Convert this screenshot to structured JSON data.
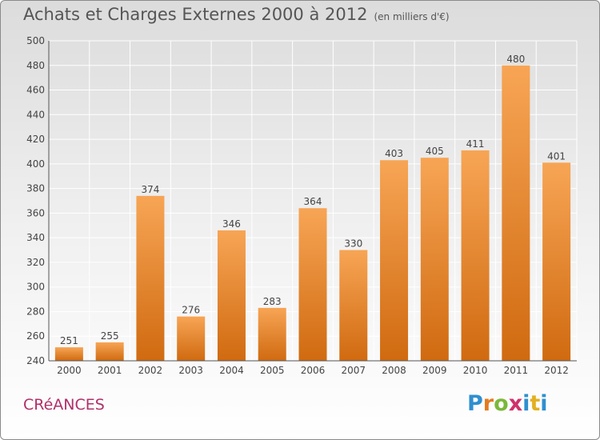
{
  "header": {
    "title": "Achats et Charges Externes 2000 à 2012",
    "subtitle": "(en milliers d'€)"
  },
  "footer": {
    "place": "CRéANCES",
    "brand": "Proxiti"
  },
  "colors": {
    "bar_light": "#f7a555",
    "bar_dark": "#d06a10"
  },
  "chart_data": {
    "type": "bar",
    "categories": [
      "2000",
      "2001",
      "2002",
      "2003",
      "2004",
      "2005",
      "2006",
      "2007",
      "2008",
      "2009",
      "2010",
      "2011",
      "2012"
    ],
    "values": [
      251,
      255,
      374,
      276,
      346,
      283,
      364,
      330,
      403,
      405,
      411,
      480,
      401
    ],
    "title": "Achats et Charges Externes 2000 à 2012",
    "subtitle": "(en milliers d'€)",
    "xlabel": "",
    "ylabel": "",
    "ylim": [
      240,
      500
    ],
    "yticks": [
      240,
      260,
      280,
      300,
      320,
      340,
      360,
      380,
      400,
      420,
      440,
      460,
      480,
      500
    ],
    "grid": true,
    "legend": "none",
    "data_labels": true
  }
}
